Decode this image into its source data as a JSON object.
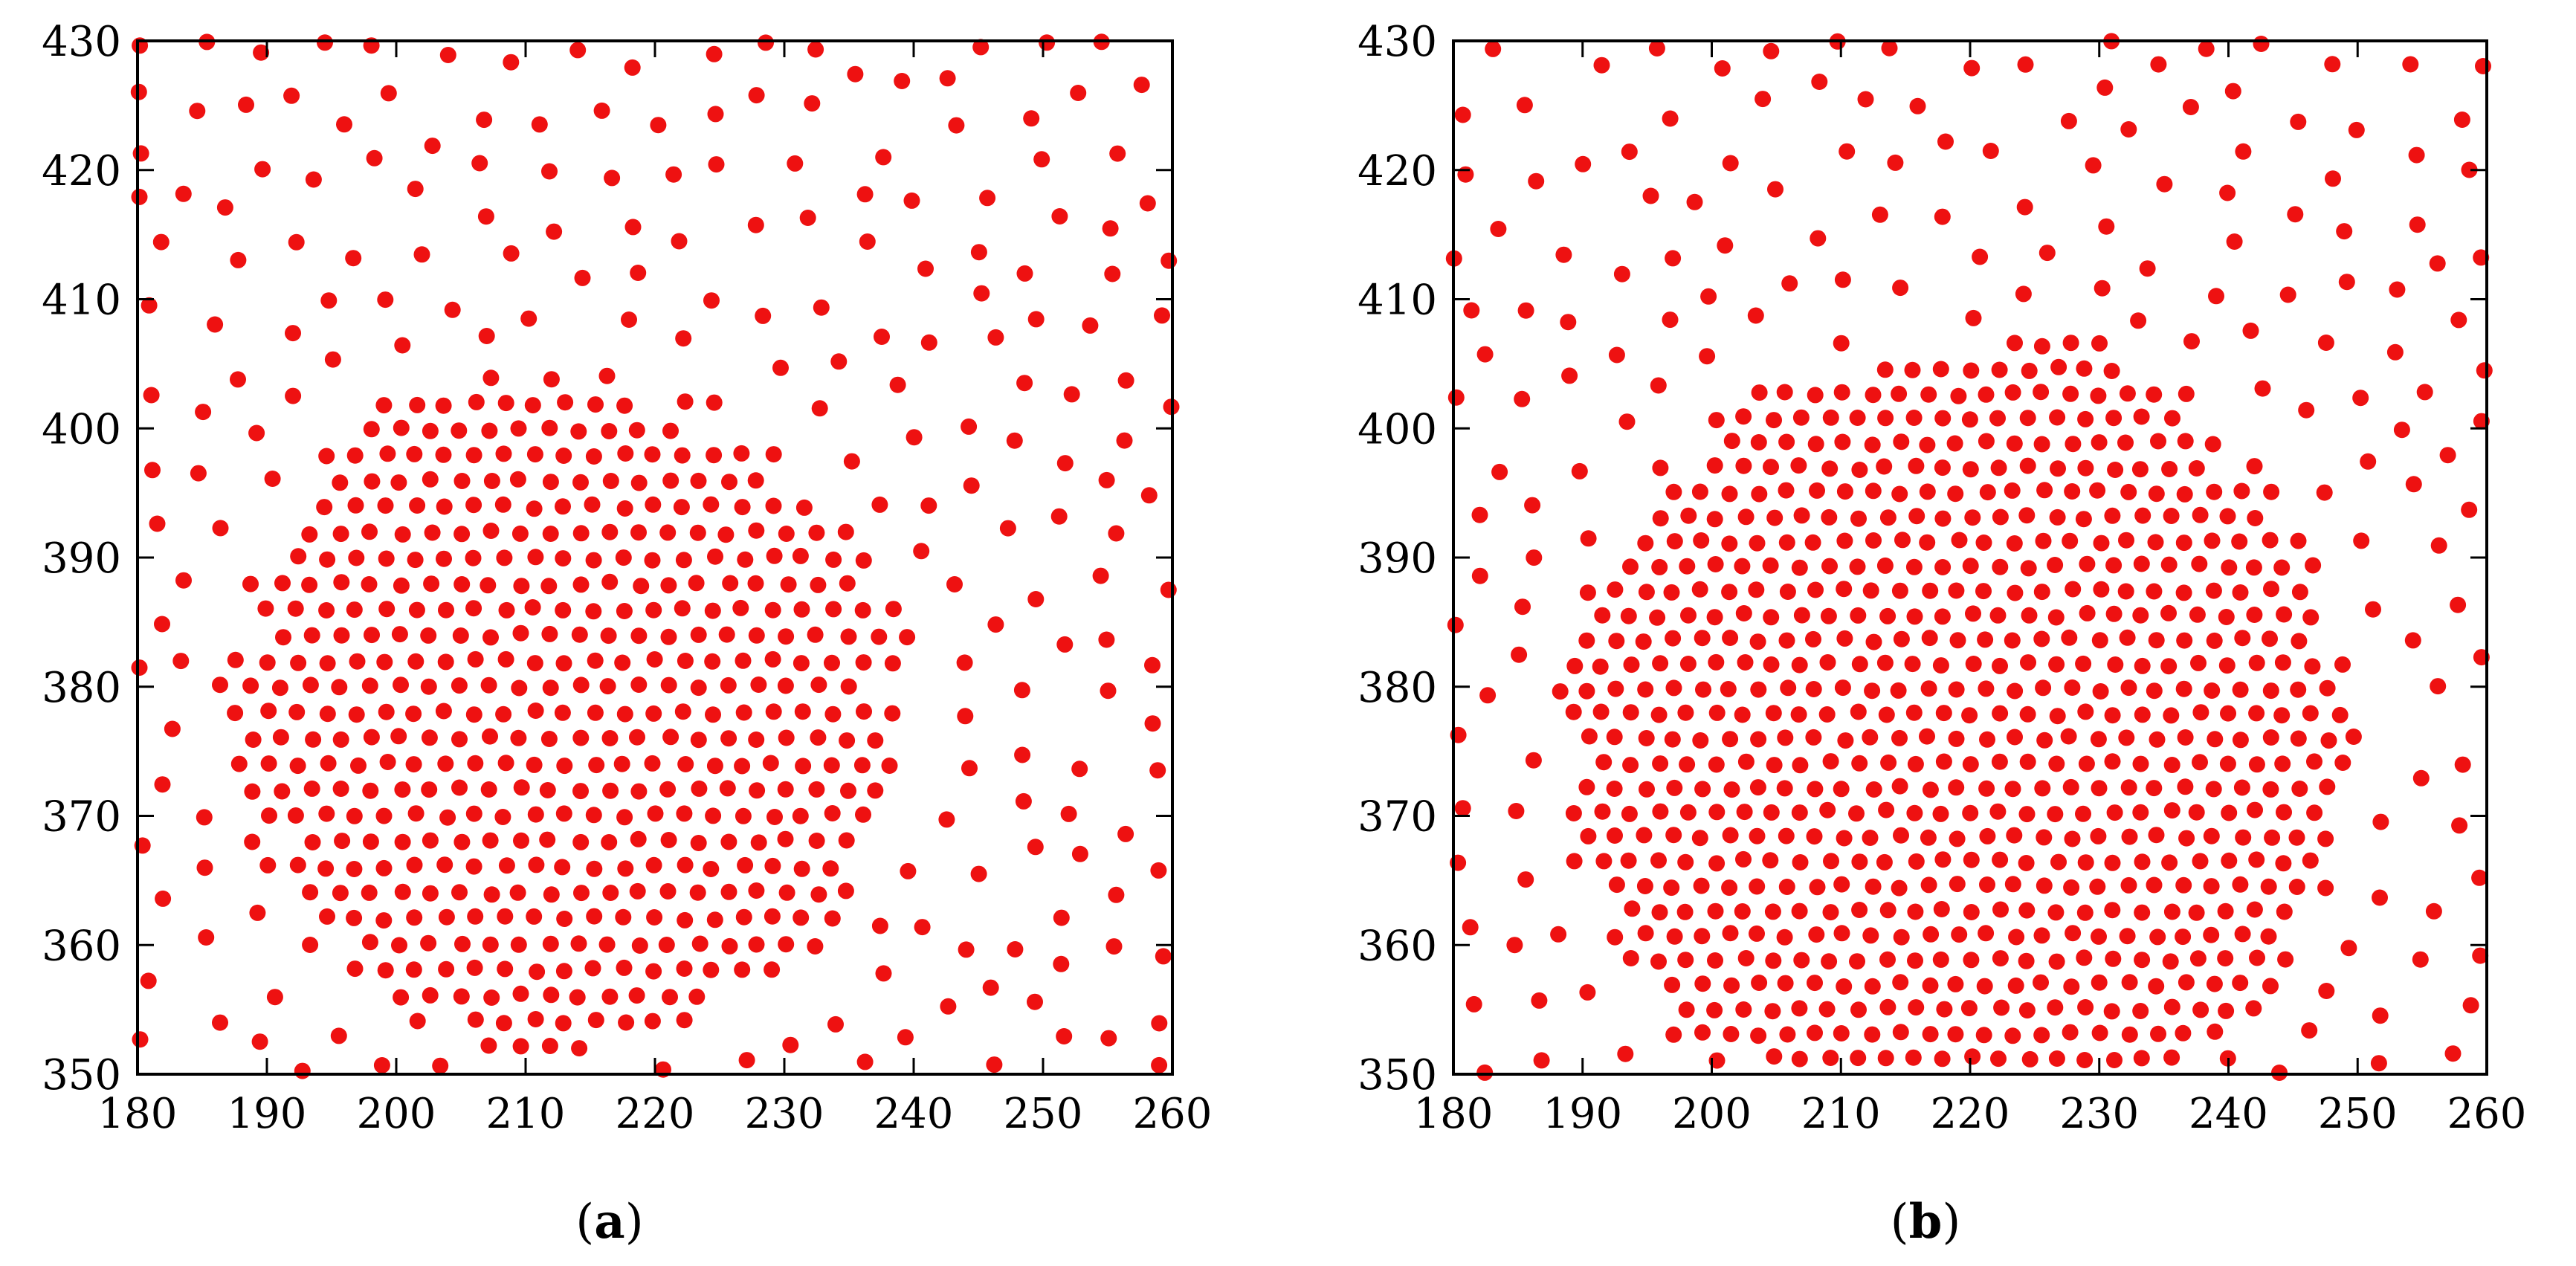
{
  "chart_data": [
    {
      "type": "scatter",
      "panel_label": "a",
      "xlim": [
        180,
        260
      ],
      "ylim": [
        350,
        430
      ],
      "x_ticks": [
        "180",
        "190",
        "200",
        "210",
        "220",
        "230",
        "240",
        "250",
        "260"
      ],
      "y_ticks": [
        "350",
        "360",
        "370",
        "380",
        "390",
        "400",
        "410",
        "420",
        "430"
      ],
      "grid": false,
      "legend": "none",
      "marker_color": "#ee1111",
      "structure": {
        "description": "dense ordered core with sparse irregular periphery",
        "core_center": [
          213,
          378
        ],
        "core_radius": 26,
        "core_spacing": 2.3,
        "outer_spacing": 3.5,
        "seed": 7
      }
    },
    {
      "type": "scatter",
      "panel_label": "b",
      "xlim": [
        180,
        260
      ],
      "ylim": [
        350,
        430
      ],
      "x_ticks": [
        "180",
        "190",
        "200",
        "210",
        "220",
        "230",
        "240",
        "250",
        "260"
      ],
      "y_ticks": [
        "350",
        "360",
        "370",
        "380",
        "390",
        "400",
        "410",
        "420",
        "430"
      ],
      "grid": false,
      "legend": "none",
      "marker_color": "#ee1111",
      "structure": {
        "description": "larger dense ordered core with sparse irregular periphery",
        "core_center": [
          219,
          376
        ],
        "core_radius": 31,
        "core_spacing": 2.2,
        "outer_spacing": 3.6,
        "seed": 19
      }
    }
  ]
}
